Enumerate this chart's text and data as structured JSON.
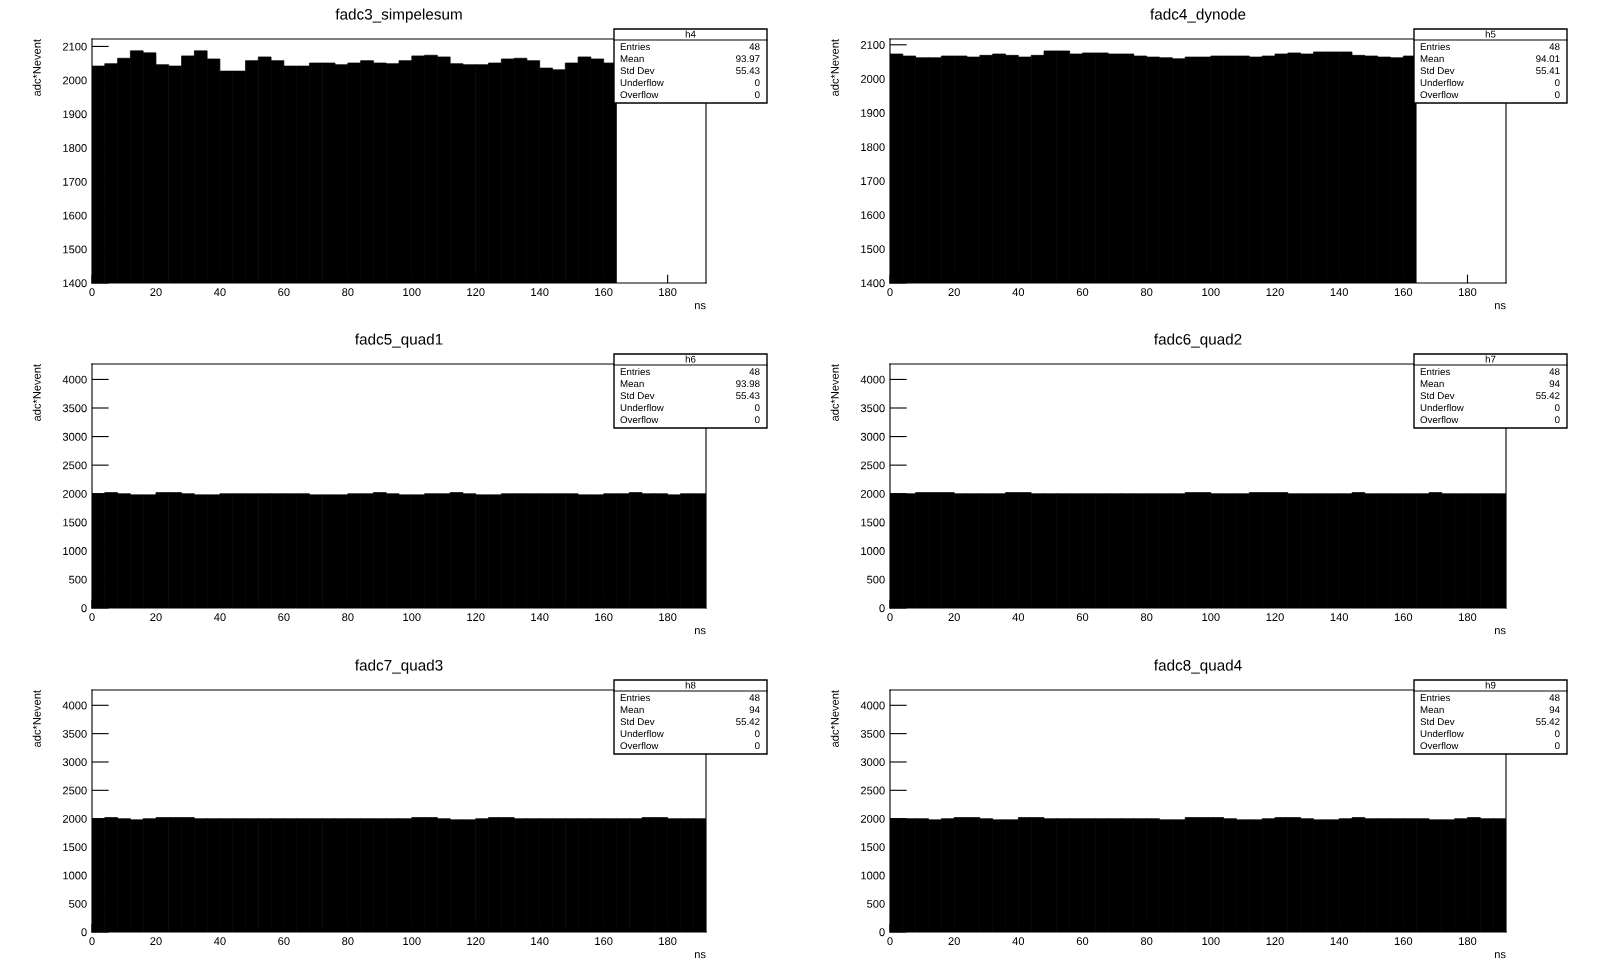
{
  "chart_data": [
    {
      "type": "histogram",
      "title": "fadc3_simpelesum",
      "xlabel": "ns",
      "ylabel": "adc*Nevent",
      "color": "#000000",
      "grid": false,
      "bins": [
        0,
        4,
        8,
        12,
        16,
        20,
        24,
        28,
        32,
        36,
        40,
        44,
        48,
        52,
        56,
        60,
        64,
        68,
        72,
        76,
        80,
        84,
        88,
        92,
        96,
        100,
        104,
        108,
        112,
        116,
        120,
        124,
        128,
        132,
        136,
        140,
        144,
        148,
        152,
        156,
        160,
        164,
        168,
        172,
        176,
        180,
        184,
        188,
        192
      ],
      "values": [
        2042,
        2049,
        2065,
        2087,
        2081,
        2046,
        2042,
        2072,
        2087,
        2063,
        2027,
        2027,
        2058,
        2069,
        2058,
        2042,
        2042,
        2051,
        2051,
        2046,
        2051,
        2058,
        2051,
        2049,
        2058,
        2072,
        2074,
        2069,
        2049,
        2046,
        2046,
        2051,
        2063,
        2065,
        2058,
        2036,
        2031,
        2051,
        2069,
        2063,
        2051,
        null,
        null,
        null,
        null,
        null,
        null,
        null
      ],
      "xlim": [
        0,
        192
      ],
      "xticks": [
        0,
        20,
        40,
        60,
        80,
        100,
        120,
        140,
        160,
        180
      ],
      "ylim": [
        1400,
        2122
      ],
      "yticks": [
        1400,
        1500,
        1600,
        1700,
        1800,
        1900,
        2000,
        2100
      ],
      "annotations": [
        "h4",
        "Entries",
        "48",
        "Mean",
        "93.97",
        "Std Dev",
        "55.43",
        "Underflow",
        "0",
        "Overflow",
        "0"
      ]
    },
    {
      "type": "histogram",
      "title": "fadc4_dynode",
      "xlabel": "ns",
      "ylabel": "adc*Nevent",
      "color": "#000000",
      "grid": false,
      "bins": [
        0,
        4,
        8,
        12,
        16,
        20,
        24,
        28,
        32,
        36,
        40,
        44,
        48,
        52,
        56,
        60,
        64,
        68,
        72,
        76,
        80,
        84,
        88,
        92,
        96,
        100,
        104,
        108,
        112,
        116,
        120,
        124,
        128,
        132,
        136,
        140,
        144,
        148,
        152,
        156,
        160,
        164,
        168,
        172,
        176,
        180,
        184,
        188,
        192
      ],
      "values": [
        2073,
        2067,
        2062,
        2062,
        2067,
        2067,
        2064,
        2069,
        2073,
        2069,
        2064,
        2069,
        2082,
        2082,
        2073,
        2076,
        2076,
        2073,
        2073,
        2067,
        2064,
        2062,
        2059,
        2064,
        2064,
        2067,
        2067,
        2067,
        2064,
        2067,
        2073,
        2076,
        2073,
        2079,
        2079,
        2079,
        2069,
        2067,
        2064,
        2062,
        2067,
        null,
        null,
        null,
        null,
        null,
        null,
        null
      ],
      "xlim": [
        0,
        192
      ],
      "xticks": [
        0,
        20,
        40,
        60,
        80,
        100,
        120,
        140,
        160,
        180
      ],
      "ylim": [
        1400,
        2117
      ],
      "yticks": [
        1400,
        1500,
        1600,
        1700,
        1800,
        1900,
        2000,
        2100
      ],
      "annotations": [
        "h5",
        "Entries",
        "48",
        "Mean",
        "94.01",
        "Std Dev",
        "55.41",
        "Underflow",
        "0",
        "Overflow",
        "0"
      ]
    },
    {
      "type": "histogram",
      "title": "fadc5_quad1",
      "xlabel": "ns",
      "ylabel": "adc*Nevent",
      "color": "#000000",
      "grid": false,
      "bins": [
        0,
        4,
        8,
        12,
        16,
        20,
        24,
        28,
        32,
        36,
        40,
        44,
        48,
        52,
        56,
        60,
        64,
        68,
        72,
        76,
        80,
        84,
        88,
        92,
        96,
        100,
        104,
        108,
        112,
        116,
        120,
        124,
        128,
        132,
        136,
        140,
        144,
        148,
        152,
        156,
        160,
        164,
        168,
        172,
        176,
        180,
        184,
        188,
        192
      ],
      "values": [
        2000,
        2020,
        2000,
        1980,
        1980,
        2020,
        2020,
        2000,
        1980,
        1980,
        2000,
        2000,
        2000,
        2000,
        2000,
        2000,
        2000,
        1980,
        1980,
        1980,
        2000,
        2000,
        2020,
        2000,
        1980,
        1980,
        2000,
        2000,
        2020,
        2000,
        1980,
        1980,
        2000,
        2000,
        2000,
        2000,
        2000,
        2000,
        1980,
        1980,
        2000,
        2000,
        2020,
        2000,
        2000,
        1980,
        2000,
        2000
      ],
      "xlim": [
        0,
        192
      ],
      "xticks": [
        0,
        20,
        40,
        60,
        80,
        100,
        120,
        140,
        160,
        180
      ],
      "ylim": [
        0,
        4270
      ],
      "yticks": [
        0,
        500,
        1000,
        1500,
        2000,
        2500,
        3000,
        3500,
        4000
      ],
      "annotations": [
        "h6",
        "Entries",
        "48",
        "Mean",
        "93.98",
        "Std Dev",
        "55.43",
        "Underflow",
        "0",
        "Overflow",
        "0"
      ]
    },
    {
      "type": "histogram",
      "title": "fadc6_quad2",
      "xlabel": "ns",
      "ylabel": "adc*Nevent",
      "color": "#000000",
      "grid": false,
      "bins": [
        0,
        4,
        8,
        12,
        16,
        20,
        24,
        28,
        32,
        36,
        40,
        44,
        48,
        52,
        56,
        60,
        64,
        68,
        72,
        76,
        80,
        84,
        88,
        92,
        96,
        100,
        104,
        108,
        112,
        116,
        120,
        124,
        128,
        132,
        136,
        140,
        144,
        148,
        152,
        156,
        160,
        164,
        168,
        172,
        176,
        180,
        184,
        188,
        192
      ],
      "values": [
        2000,
        2000,
        2020,
        2020,
        2020,
        2000,
        2000,
        2000,
        2000,
        2020,
        2020,
        2000,
        2000,
        2000,
        2000,
        2000,
        2000,
        2000,
        2000,
        2000,
        2000,
        2000,
        2000,
        2020,
        2020,
        2000,
        2000,
        2000,
        2020,
        2020,
        2020,
        2000,
        2000,
        2000,
        2000,
        2000,
        2020,
        2000,
        2000,
        2000,
        2000,
        2000,
        2020,
        2000,
        2000,
        2000,
        2000,
        2000
      ],
      "xlim": [
        0,
        192
      ],
      "xticks": [
        0,
        20,
        40,
        60,
        80,
        100,
        120,
        140,
        160,
        180
      ],
      "ylim": [
        0,
        4270
      ],
      "yticks": [
        0,
        500,
        1000,
        1500,
        2000,
        2500,
        3000,
        3500,
        4000
      ],
      "annotations": [
        "h7",
        "Entries",
        "48",
        "Mean",
        "94",
        "Std Dev",
        "55.42",
        "Underflow",
        "0",
        "Overflow",
        "0"
      ]
    },
    {
      "type": "histogram",
      "title": "fadc7_quad3",
      "xlabel": "ns",
      "ylabel": "adc*Nevent",
      "color": "#000000",
      "grid": false,
      "bins": [
        0,
        4,
        8,
        12,
        16,
        20,
        24,
        28,
        32,
        36,
        40,
        44,
        48,
        52,
        56,
        60,
        64,
        68,
        72,
        76,
        80,
        84,
        88,
        92,
        96,
        100,
        104,
        108,
        112,
        116,
        120,
        124,
        128,
        132,
        136,
        140,
        144,
        148,
        152,
        156,
        160,
        164,
        168,
        172,
        176,
        180,
        184,
        188,
        192
      ],
      "values": [
        2000,
        2020,
        2000,
        1980,
        2000,
        2020,
        2020,
        2020,
        2000,
        2000,
        2000,
        2000,
        2000,
        2000,
        2000,
        2000,
        2000,
        2000,
        2000,
        2000,
        2000,
        2000,
        2000,
        2000,
        2000,
        2020,
        2020,
        2000,
        1980,
        1980,
        2000,
        2020,
        2020,
        2000,
        2000,
        2000,
        2000,
        2000,
        2000,
        2000,
        2000,
        2000,
        2000,
        2020,
        2020,
        2000,
        2000,
        2000
      ],
      "xlim": [
        0,
        192
      ],
      "xticks": [
        0,
        20,
        40,
        60,
        80,
        100,
        120,
        140,
        160,
        180
      ],
      "ylim": [
        0,
        4270
      ],
      "yticks": [
        0,
        500,
        1000,
        1500,
        2000,
        2500,
        3000,
        3500,
        4000
      ],
      "annotations": [
        "h8",
        "Entries",
        "48",
        "Mean",
        "94",
        "Std Dev",
        "55.42",
        "Underflow",
        "0",
        "Overflow",
        "0"
      ]
    },
    {
      "type": "histogram",
      "title": "fadc8_quad4",
      "xlabel": "ns",
      "ylabel": "adc*Nevent",
      "color": "#000000",
      "grid": false,
      "bins": [
        0,
        4,
        8,
        12,
        16,
        20,
        24,
        28,
        32,
        36,
        40,
        44,
        48,
        52,
        56,
        60,
        64,
        68,
        72,
        76,
        80,
        84,
        88,
        92,
        96,
        100,
        104,
        108,
        112,
        116,
        120,
        124,
        128,
        132,
        136,
        140,
        144,
        148,
        152,
        156,
        160,
        164,
        168,
        172,
        176,
        180,
        184,
        188,
        192
      ],
      "values": [
        2000,
        2000,
        2000,
        1980,
        2000,
        2020,
        2020,
        2000,
        1980,
        1980,
        2020,
        2020,
        2000,
        2000,
        2000,
        2000,
        2000,
        2000,
        2000,
        2000,
        2000,
        1980,
        1980,
        2020,
        2020,
        2020,
        2000,
        1980,
        1980,
        2000,
        2020,
        2020,
        2000,
        1980,
        1980,
        2000,
        2020,
        2000,
        2000,
        2000,
        2000,
        2000,
        1980,
        1980,
        2000,
        2020,
        2000,
        2000
      ],
      "xlim": [
        0,
        192
      ],
      "xticks": [
        0,
        20,
        40,
        60,
        80,
        100,
        120,
        140,
        160,
        180
      ],
      "ylim": [
        0,
        4270
      ],
      "yticks": [
        0,
        500,
        1000,
        1500,
        2000,
        2500,
        3000,
        3500,
        4000
      ],
      "annotations": [
        "h9",
        "Entries",
        "48",
        "Mean",
        "94",
        "Std Dev",
        "55.42",
        "Underflow",
        "0",
        "Overflow",
        "0"
      ]
    }
  ]
}
